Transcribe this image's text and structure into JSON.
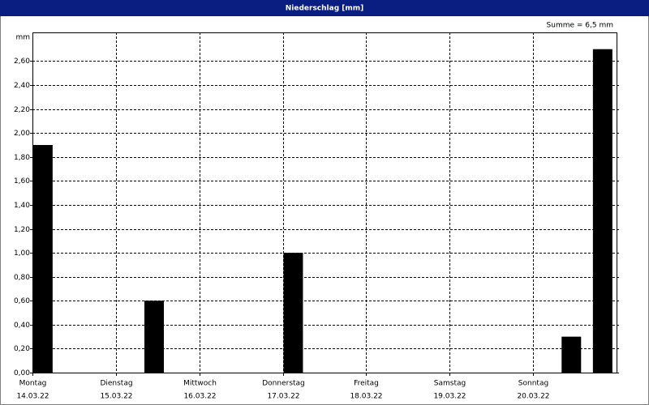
{
  "chart_data": {
    "type": "bar",
    "title": "Niederschlag [mm]",
    "annotation": "Summe = 6,5 mm",
    "y_unit": "mm",
    "x": [
      3,
      35,
      75,
      155,
      164
    ],
    "values": [
      1.9,
      0.6,
      1.0,
      0.3,
      2.7
    ],
    "color": "#000000",
    "xlim": [
      0,
      168
    ],
    "xticks": [
      {
        "value": 0,
        "label": "Montag",
        "date": "14.03.22"
      },
      {
        "value": 24,
        "label": "Dienstag",
        "date": "15.03.22"
      },
      {
        "value": 48,
        "label": "Mittwoch",
        "date": "16.03.22"
      },
      {
        "value": 72,
        "label": "Donnerstag",
        "date": "17.03.22"
      },
      {
        "value": 96,
        "label": "Freitag",
        "date": "18.03.22"
      },
      {
        "value": 120,
        "label": "Samstag",
        "date": "19.03.22"
      },
      {
        "value": 144,
        "label": "Sonntag",
        "date": "20.03.22"
      }
    ],
    "ylim": [
      0,
      2.84
    ],
    "yticks": [
      {
        "value": 0,
        "label": "0,00"
      },
      {
        "value": 0.2,
        "label": "0,20"
      },
      {
        "value": 0.4,
        "label": "0,40"
      },
      {
        "value": 0.6,
        "label": "0,60"
      },
      {
        "value": 0.8,
        "label": "0,80"
      },
      {
        "value": 1.0,
        "label": "1,00"
      },
      {
        "value": 1.2,
        "label": "1,20"
      },
      {
        "value": 1.4,
        "label": "1,40"
      },
      {
        "value": 1.6,
        "label": "1,60"
      },
      {
        "value": 1.8,
        "label": "1,80"
      },
      {
        "value": 2.0,
        "label": "2,00"
      },
      {
        "value": 2.2,
        "label": "2,20"
      },
      {
        "value": 2.4,
        "label": "2,40"
      },
      {
        "value": 2.6,
        "label": "2,60"
      }
    ],
    "grid": true
  }
}
